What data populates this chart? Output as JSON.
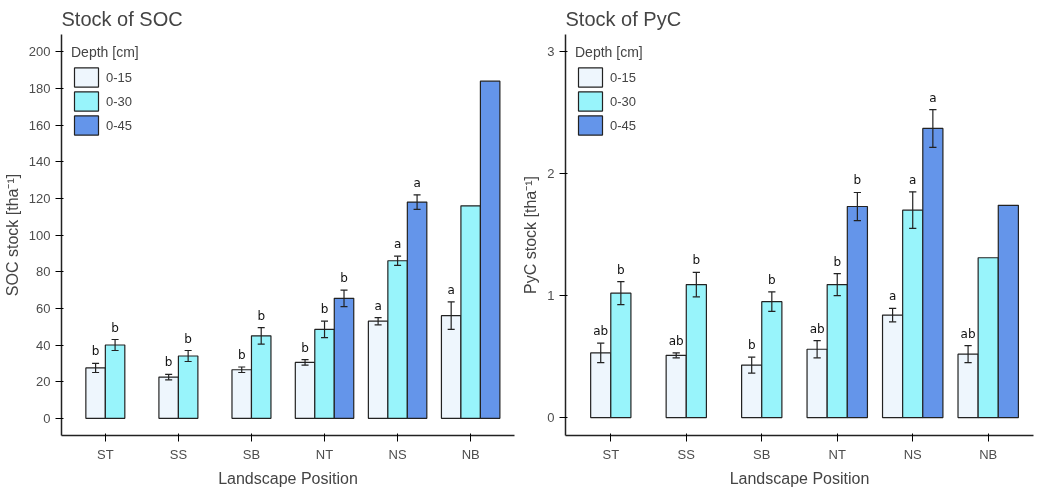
{
  "chart_data": [
    {
      "type": "bar",
      "title": "Stock of SOC",
      "xlabel": "Landscape Position",
      "ylabel": "SOC stock [tha⁻¹]",
      "legend_title": "Depth [cm]",
      "categories": [
        "ST",
        "SS",
        "SB",
        "NT",
        "NS",
        "NB"
      ],
      "series": [
        {
          "name": "0-15",
          "color": "#eef6fd",
          "values": [
            27.5,
            22.5,
            26.5,
            30.5,
            53,
            56
          ],
          "errors": [
            2.5,
            1.5,
            1.5,
            1.5,
            2,
            7.5
          ],
          "value_labels": [
            "b",
            "b",
            "b",
            "b",
            "a",
            "a"
          ]
        },
        {
          "name": "0-30",
          "color": "#98f4fb",
          "values": [
            40,
            34,
            45,
            48.5,
            86,
            116
          ],
          "errors": [
            3,
            3,
            4.5,
            4.5,
            2.5,
            null
          ],
          "value_labels": [
            "b",
            "b",
            "b",
            "b",
            "a",
            null
          ]
        },
        {
          "name": "0-45",
          "color": "#6495ea",
          "values": [
            null,
            null,
            null,
            65.5,
            118,
            184
          ],
          "errors": [
            null,
            null,
            null,
            4.5,
            4,
            null
          ],
          "value_labels": [
            null,
            null,
            null,
            "b",
            "a",
            null
          ]
        }
      ],
      "ylim": [
        -9.4,
        209.5
      ],
      "yticks": [
        0,
        20,
        40,
        60,
        80,
        100,
        120,
        140,
        160,
        180,
        200
      ],
      "grid": false,
      "legend": "top left"
    },
    {
      "type": "bar",
      "title": "Stock of PyC",
      "xlabel": "Landscape Position",
      "ylabel": "PyC stock [tha⁻¹]",
      "legend_title": "Depth [cm]",
      "categories": [
        "ST",
        "SS",
        "SB",
        "NT",
        "NS",
        "NB"
      ],
      "series": [
        {
          "name": "0-15",
          "color": "#eef6fd",
          "values": [
            0.53,
            0.51,
            0.43,
            0.56,
            0.84,
            0.52
          ],
          "errors": [
            0.08,
            0.02,
            0.065,
            0.07,
            0.055,
            0.07
          ],
          "value_labels": [
            "ab",
            "ab",
            "b",
            "ab",
            "a",
            "ab"
          ]
        },
        {
          "name": "0-30",
          "color": "#98f4fb",
          "values": [
            1.02,
            1.09,
            0.95,
            1.09,
            1.7,
            1.31
          ],
          "errors": [
            0.095,
            0.1,
            0.08,
            0.09,
            0.15,
            null
          ],
          "value_labels": [
            "b",
            "b",
            "b",
            "b",
            "a",
            null
          ]
        },
        {
          "name": "0-45",
          "color": "#6495ea",
          "values": [
            null,
            null,
            null,
            1.73,
            2.37,
            1.74
          ],
          "errors": [
            null,
            null,
            null,
            0.115,
            0.155,
            null
          ],
          "value_labels": [
            null,
            null,
            null,
            "b",
            "a",
            null
          ]
        }
      ],
      "ylim": [
        -0.147,
        3.14
      ],
      "yticks": [
        0,
        1,
        2,
        3
      ],
      "grid": false,
      "legend": "top left"
    }
  ]
}
